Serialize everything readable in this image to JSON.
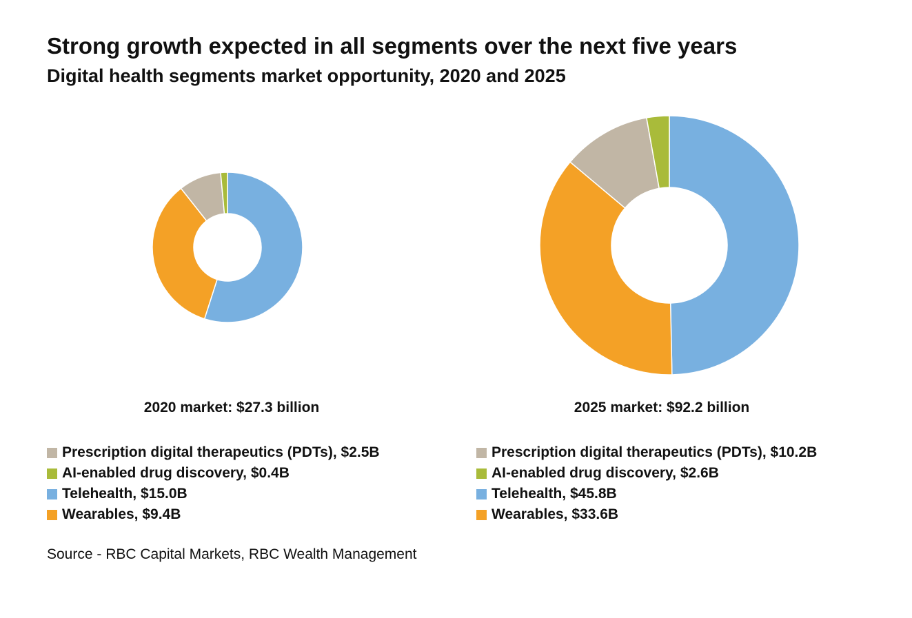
{
  "title": "Strong growth expected in all segments over the next five years",
  "subtitle": "Digital health segments market opportunity, 2020 and 2025",
  "source": "Source - RBC Capital Markets, RBC Wealth Management",
  "colors": {
    "pdt": "#c1b6a5",
    "ai": "#a9bb3a",
    "telehealth": "#78b0e0",
    "wearables": "#f4a126"
  },
  "chart_data": [
    {
      "type": "pie",
      "title": "2020 market: $27.3 billion",
      "categories": [
        "Prescription digital therapeutics (PDTs)",
        "AI-enabled drug discovery",
        "Telehealth",
        "Wearables"
      ],
      "values": [
        2.5,
        0.4,
        15.0,
        9.4
      ],
      "unit": "$B",
      "legend": [
        {
          "key": "pdt",
          "label": "Prescription digital therapeutics (PDTs), $2.5B"
        },
        {
          "key": "ai",
          "label": "AI-enabled drug discovery, $0.4B"
        },
        {
          "key": "telehealth",
          "label": "Telehealth, $15.0B"
        },
        {
          "key": "wearables",
          "label": "Wearables, $9.4B"
        }
      ]
    },
    {
      "type": "pie",
      "title": "2025 market: $92.2 billion",
      "categories": [
        "Prescription digital therapeutics (PDTs)",
        "AI-enabled drug discovery",
        "Telehealth",
        "Wearables"
      ],
      "values": [
        10.2,
        2.6,
        45.8,
        33.6
      ],
      "unit": "$B",
      "legend": [
        {
          "key": "pdt",
          "label": "Prescription digital therapeutics (PDTs), $10.2B"
        },
        {
          "key": "ai",
          "label": "AI-enabled drug discovery, $2.6B"
        },
        {
          "key": "telehealth",
          "label": "Telehealth, $45.8B"
        },
        {
          "key": "wearables",
          "label": "Wearables, $33.6B"
        }
      ]
    }
  ]
}
